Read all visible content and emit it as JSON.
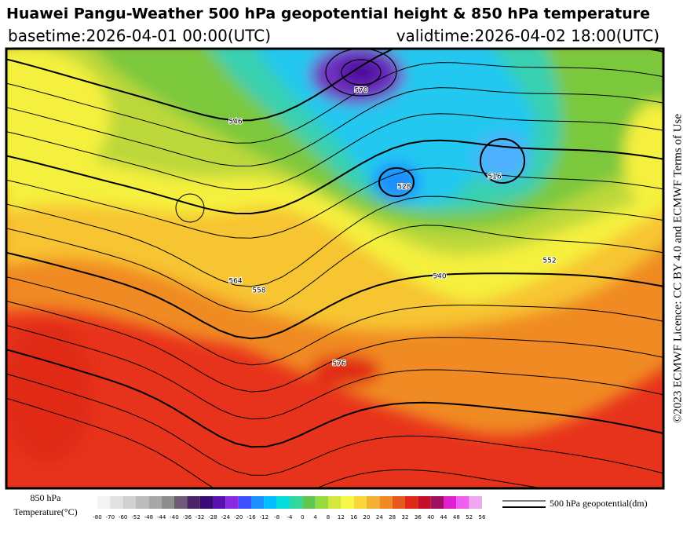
{
  "header": {
    "title": "Huawei Pangu-Weather 500 hPa geopotential height & 850 hPa temperature",
    "basetime": "basetime:2026-04-01 00:00(UTC)",
    "validtime": "validtime:2026-04-02 18:00(UTC)"
  },
  "license": "©2023 ECMWF Licence: CC BY 4.0 and ECMWF Terms of Use",
  "contour_labels": [
    "576",
    "552",
    "528",
    "516",
    "540",
    "564",
    "558",
    "570",
    "546"
  ],
  "colorbar": {
    "title_line1": "850 hPa",
    "title_line2": "Temperature(°C)",
    "ticks": [
      "-80",
      "-70",
      "-60",
      "-52",
      "-48",
      "-44",
      "-40",
      "-36",
      "-32",
      "-28",
      "-24",
      "-20",
      "-16",
      "-12",
      "-8",
      "-4",
      "0",
      "4",
      "8",
      "12",
      "16",
      "20",
      "24",
      "28",
      "32",
      "36",
      "40",
      "44",
      "48",
      "52",
      "56"
    ],
    "colors": [
      "#f4f4f4",
      "#e2e2e2",
      "#d0d0d0",
      "#bcbcbc",
      "#a8a8a8",
      "#8e8e8e",
      "#6f5a78",
      "#4a2466",
      "#3a0a78",
      "#5c10b0",
      "#8a2be2",
      "#3c50ff",
      "#1e90ff",
      "#00bfff",
      "#00dede",
      "#30d8a0",
      "#60c850",
      "#98d840",
      "#d0e840",
      "#f8f848",
      "#f8d838",
      "#f4b030",
      "#f08a24",
      "#e85a1c",
      "#e02a18",
      "#c0102a",
      "#a01060",
      "#e020d0",
      "#f060f0",
      "#f0a8f0"
    ]
  },
  "legend": {
    "label": "500 hPa geopotential(dm)"
  }
}
